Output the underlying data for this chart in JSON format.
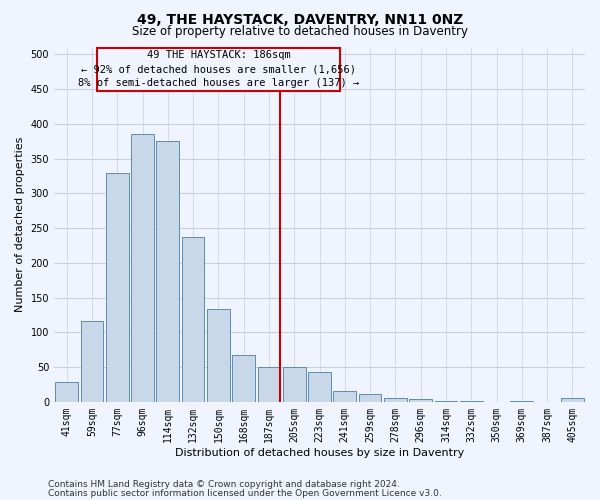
{
  "title": "49, THE HAYSTACK, DAVENTRY, NN11 0NZ",
  "subtitle": "Size of property relative to detached houses in Daventry",
  "xlabel": "Distribution of detached houses by size in Daventry",
  "ylabel": "Number of detached properties",
  "categories": [
    "41sqm",
    "59sqm",
    "77sqm",
    "96sqm",
    "114sqm",
    "132sqm",
    "150sqm",
    "168sqm",
    "187sqm",
    "205sqm",
    "223sqm",
    "241sqm",
    "259sqm",
    "278sqm",
    "296sqm",
    "314sqm",
    "332sqm",
    "350sqm",
    "369sqm",
    "387sqm",
    "405sqm"
  ],
  "values": [
    28,
    116,
    330,
    385,
    375,
    237,
    133,
    68,
    50,
    50,
    43,
    16,
    11,
    5,
    4,
    1,
    1,
    0,
    1,
    0,
    6
  ],
  "bar_color": "#c8d8e8",
  "bar_edge_color": "#5b8db8",
  "vline_color": "#cc0000",
  "ylim": [
    0,
    510
  ],
  "yticks": [
    0,
    50,
    100,
    150,
    200,
    250,
    300,
    350,
    400,
    450,
    500
  ],
  "annotation_title": "49 THE HAYSTACK: 186sqm",
  "annotation_line1": "← 92% of detached houses are smaller (1,656)",
  "annotation_line2": "8% of semi-detached houses are larger (137) →",
  "annotation_box_color": "#cc0000",
  "footer_line1": "Contains HM Land Registry data © Crown copyright and database right 2024.",
  "footer_line2": "Contains public sector information licensed under the Open Government Licence v3.0.",
  "bg_color": "#f0f4ff",
  "grid_color": "#c8d0e0",
  "title_fontsize": 10,
  "subtitle_fontsize": 8.5,
  "axis_label_fontsize": 8,
  "tick_fontsize": 7,
  "footer_fontsize": 6.5,
  "annotation_fontsize": 7.5
}
